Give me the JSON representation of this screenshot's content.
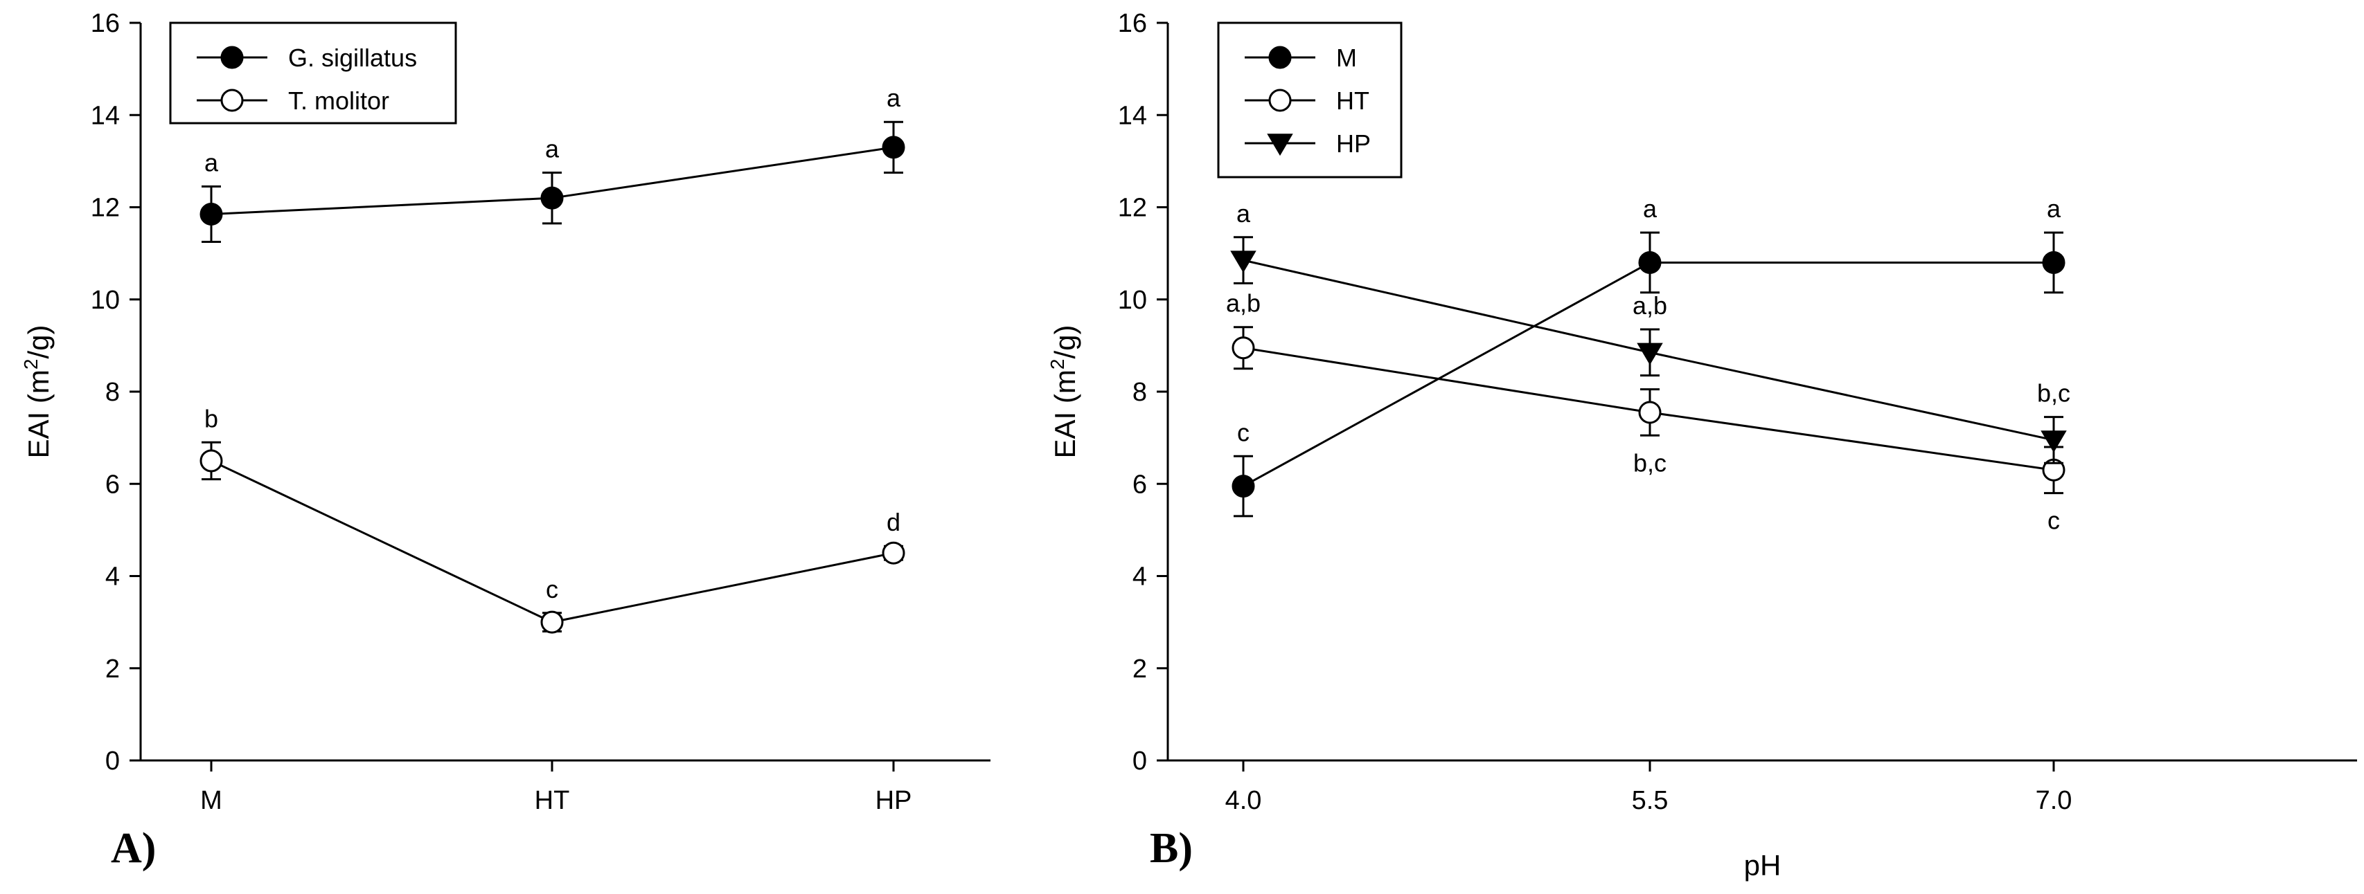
{
  "chart_data": [
    {
      "type": "line",
      "panel_label": "A)",
      "ylabel": "EAI (m",
      "ylabel_sup": "2",
      "ylabel_tail": "/g)",
      "xlabel": "",
      "categories": [
        "M",
        "HT",
        "HP"
      ],
      "ylim": [
        0,
        16
      ],
      "yticks": [
        0,
        2,
        4,
        6,
        8,
        10,
        12,
        14,
        16
      ],
      "ytick_labels": [
        "0",
        "2",
        "4",
        "6",
        "8",
        "10",
        "12",
        "14",
        "16"
      ],
      "legend_position": "top-left",
      "grid": false,
      "series": [
        {
          "name": "G. sigillatus",
          "marker": "filled-circle",
          "values": [
            11.85,
            12.2,
            13.3
          ],
          "errors": [
            0.6,
            0.55,
            0.55
          ],
          "letters": [
            "a",
            "a",
            "a"
          ],
          "letter_pos": [
            "above",
            "above",
            "above"
          ]
        },
        {
          "name": "T. molitor",
          "marker": "open-circle",
          "values": [
            6.5,
            3.0,
            4.5
          ],
          "errors": [
            0.4,
            0.2,
            0.15
          ],
          "letters": [
            "b",
            "c",
            "d"
          ],
          "letter_pos": [
            "above",
            "above",
            "above"
          ]
        }
      ]
    },
    {
      "type": "line",
      "panel_label": "B)",
      "ylabel": "EAI (m",
      "ylabel_sup": "2",
      "ylabel_tail": "/g)",
      "xlabel": "pH",
      "categories": [
        "4.0",
        "5.5",
        "7.0"
      ],
      "ylim": [
        0,
        16
      ],
      "yticks": [
        0,
        2,
        4,
        6,
        8,
        10,
        12,
        14,
        16
      ],
      "ytick_labels": [
        "0",
        "2",
        "4",
        "6",
        "8",
        "10",
        "12",
        "14",
        "16"
      ],
      "legend_position": "top-left",
      "grid": false,
      "series": [
        {
          "name": "M",
          "marker": "filled-circle",
          "values": [
            5.95,
            10.8,
            10.8
          ],
          "errors": [
            0.65,
            0.65,
            0.65
          ],
          "letters": [
            "c",
            "a",
            "a"
          ],
          "letter_pos": [
            "above",
            "above",
            "above"
          ]
        },
        {
          "name": "HT",
          "marker": "open-circle",
          "values": [
            8.95,
            7.55,
            6.3
          ],
          "errors": [
            0.45,
            0.5,
            0.5
          ],
          "letters": [
            "a,b",
            "b,c",
            "c"
          ],
          "letter_pos": [
            "above",
            "below",
            "below"
          ]
        },
        {
          "name": "HP",
          "marker": "filled-triangle-down",
          "values": [
            10.85,
            8.85,
            6.95
          ],
          "errors": [
            0.5,
            0.5,
            0.5
          ],
          "letters": [
            "a",
            "a,b",
            "b,c"
          ],
          "letter_pos": [
            "above",
            "above",
            "above"
          ]
        }
      ]
    }
  ]
}
